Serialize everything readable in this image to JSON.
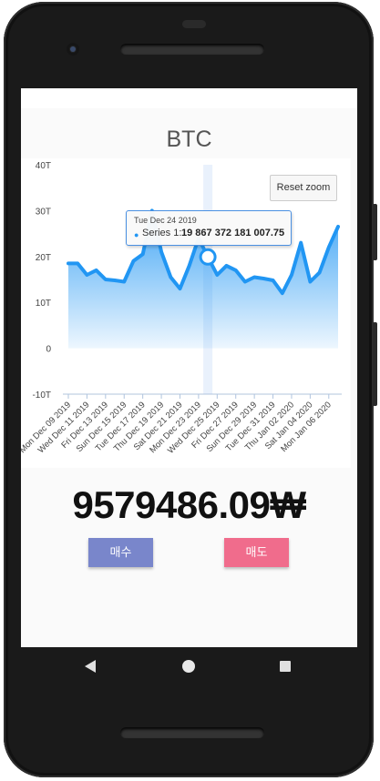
{
  "app": {
    "title": "BTC",
    "price": "9579486.09₩",
    "buy_label": "매수",
    "sell_label": "매도",
    "reset_zoom_label": "Reset zoom"
  },
  "tooltip": {
    "date": "Tue Dec 24 2019",
    "series_label": "Series 1: ",
    "value": "19 867 372 181 007.75"
  },
  "colors": {
    "series": "#2196f3",
    "buy": "#7986cb",
    "sell": "#f06c8c"
  },
  "nav": [
    "back-icon",
    "home-icon",
    "recent-apps-icon"
  ],
  "chart_data": {
    "type": "area",
    "series": [
      {
        "name": "Series 1",
        "values": [
          18.5,
          18.5,
          16,
          17,
          15,
          14.8,
          14.5,
          19,
          20.5,
          30,
          21,
          15.5,
          13,
          18,
          24,
          19.9,
          16,
          18,
          17,
          14.5,
          15.5,
          15.2,
          14.8,
          12,
          16,
          23,
          14.5,
          16.5,
          22,
          26.5
        ]
      }
    ],
    "x_tick_labels": [
      "Mon Dec 09 2019",
      "Wed Dec 11 2019",
      "Fri Dec 13 2019",
      "Sun Dec 15 2019",
      "Tue Dec 17 2019",
      "Thu Dec 19 2019",
      "Sat Dec 21 2019",
      "Mon Dec 23 2019",
      "Wed Dec 25 2019",
      "Fri Dec 27 2019",
      "Sun Dec 29 2019",
      "Tue Dec 31 2019",
      "Thu Jan 02 2020",
      "Sat Jan 04 2020",
      "Mon Jan 06 2020"
    ],
    "y_tick_labels": [
      "40T",
      "30T",
      "20T",
      "10T",
      "0",
      "-10T"
    ],
    "ylim": [
      -10,
      40
    ],
    "highlight_index": 15,
    "grid": false
  }
}
